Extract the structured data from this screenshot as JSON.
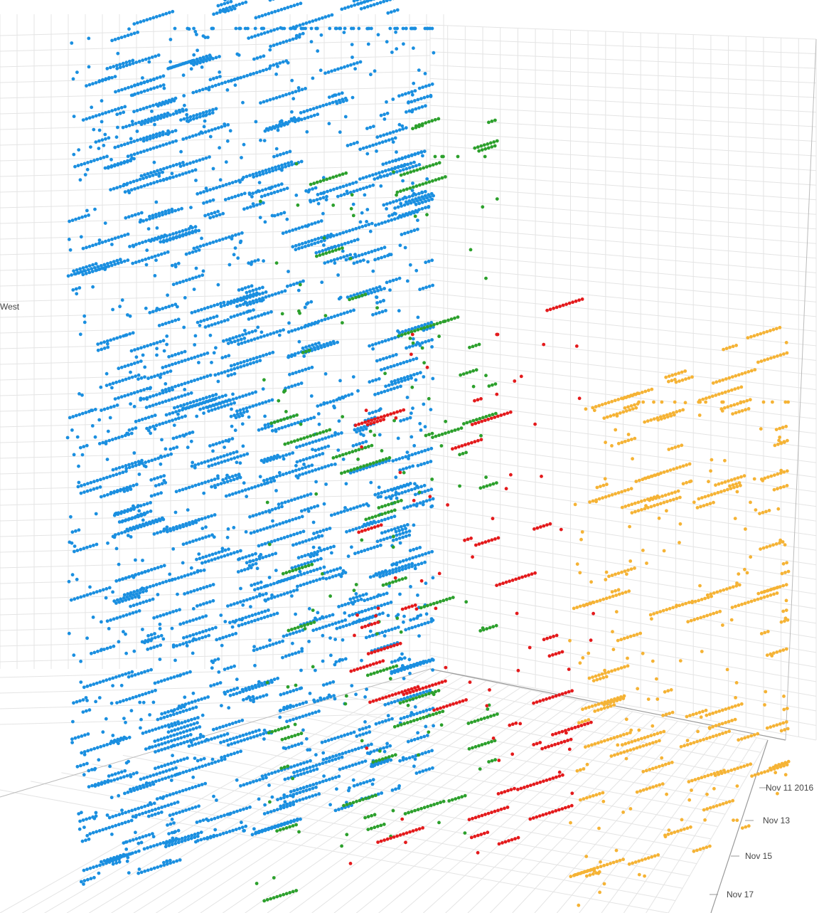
{
  "chart_data": {
    "type": "scatter",
    "projection": "3d",
    "grid": true,
    "legend": "none",
    "z_axis": {
      "visible_tick_labels": [
        "West"
      ]
    },
    "date_axis": {
      "visible_tick_labels": [
        "Nov 11 2016",
        "Nov 13",
        "Nov 15",
        "Nov 17"
      ],
      "range": [
        "2016-11-11",
        "2016-11-18"
      ]
    },
    "series": [
      {
        "color": "#1a8fe0",
        "point_count": 5200
      },
      {
        "color": "#2ca02c",
        "point_count": 520
      },
      {
        "color": "#e41a1c",
        "point_count": 360
      },
      {
        "color": "#f5b335",
        "point_count": 900
      }
    ]
  }
}
